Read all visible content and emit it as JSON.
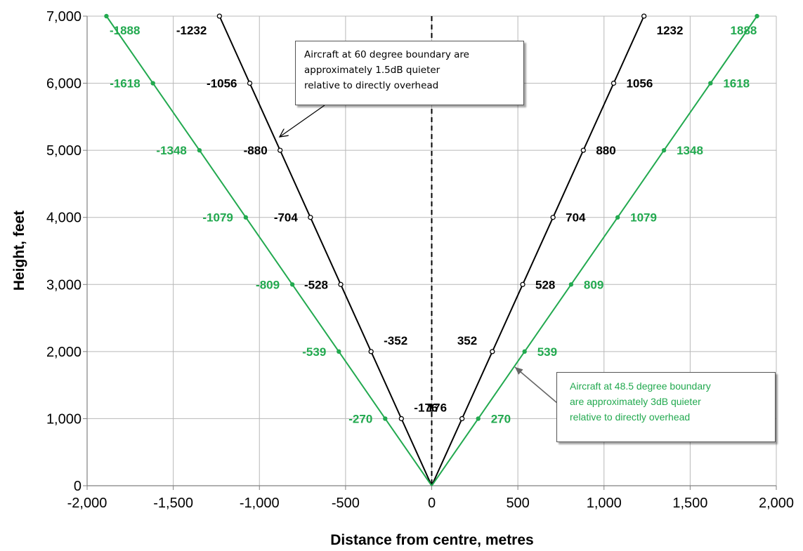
{
  "chart_data": {
    "type": "line",
    "xlabel": "Distance from centre, metres",
    "ylabel": "Height, feet",
    "xlim": [
      -2000,
      2000
    ],
    "ylim": [
      0,
      7000
    ],
    "x_ticks": [
      "-2,000",
      "-1,500",
      "-1,000",
      "-500",
      "0",
      "500",
      "1,000",
      "1,500",
      "2,000"
    ],
    "y_ticks": [
      "0",
      "1,000",
      "2,000",
      "3,000",
      "4,000",
      "5,000",
      "6,000",
      "7,000"
    ],
    "grid": true,
    "centre_line": {
      "x": 0,
      "style": "dashed"
    },
    "series": [
      {
        "color": "#000000",
        "left": {
          "x": [
            0,
            -176,
            -352,
            -528,
            -704,
            -880,
            -1056,
            -1232
          ],
          "y": [
            0,
            1000,
            2000,
            3000,
            4000,
            5000,
            6000,
            7000
          ],
          "labels": [
            "-176",
            "-352",
            "-528",
            "-704",
            "-880",
            "-1056",
            "-1232"
          ]
        },
        "right": {
          "x": [
            0,
            176,
            352,
            528,
            704,
            880,
            1056,
            1232
          ],
          "y": [
            0,
            1000,
            2000,
            3000,
            4000,
            5000,
            6000,
            7000
          ],
          "labels": [
            "176",
            "352",
            "528",
            "704",
            "880",
            "1056",
            "1232"
          ]
        }
      },
      {
        "color": "#22a94f",
        "left": {
          "x": [
            0,
            -270,
            -539,
            -809,
            -1079,
            -1348,
            -1618,
            -1888
          ],
          "y": [
            0,
            1000,
            2000,
            3000,
            4000,
            5000,
            6000,
            7000
          ],
          "labels": [
            "-270",
            "-539",
            "-809",
            "-1079",
            "-1348",
            "-1618",
            "-1888"
          ]
        },
        "right": {
          "x": [
            0,
            270,
            539,
            809,
            1079,
            1348,
            1618,
            1888
          ],
          "y": [
            0,
            1000,
            2000,
            3000,
            4000,
            5000,
            6000,
            7000
          ],
          "labels": [
            "270",
            "539",
            "809",
            "1079",
            "1348",
            "1618",
            "1888"
          ]
        }
      }
    ],
    "annotations": [
      {
        "lines": [
          "Aircraft at 60 degree boundary are",
          "approximately 1.5dB quieter",
          "relative to directly overhead"
        ],
        "color": "#000000"
      },
      {
        "lines": [
          "Aircraft at 48.5 degree boundary",
          "are approximately 3dB quieter",
          "relative to directly overhead"
        ],
        "color": "#22a94f"
      }
    ]
  }
}
